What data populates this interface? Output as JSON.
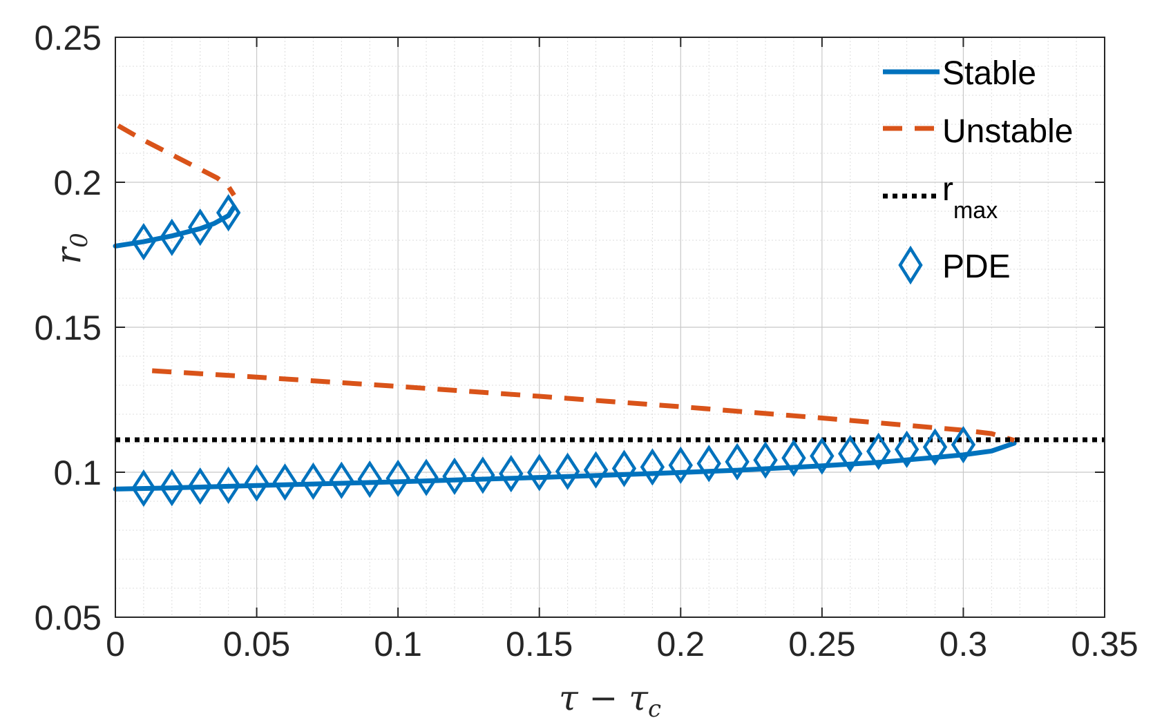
{
  "chart_data": {
    "type": "line",
    "xlabel": "τ − τc",
    "xlabel_main": "τ − τ",
    "xlabel_sub": "c",
    "ylabel": "r0",
    "ylabel_main": "r",
    "ylabel_sub": "0",
    "xlim": [
      0,
      0.35
    ],
    "ylim": [
      0.05,
      0.25
    ],
    "xticks": [
      "0",
      "0.05",
      "0.1",
      "0.15",
      "0.2",
      "0.25",
      "0.3",
      "0.35"
    ],
    "yticks": [
      "0.05",
      "0.1",
      "0.15",
      "0.2",
      "0.25"
    ],
    "grid": true,
    "minor_grid": true,
    "legend_position": "top-right",
    "colors": {
      "stable": "#0072BD",
      "unstable": "#D95319",
      "rmax": "#000000",
      "pde": "#0072BD"
    },
    "series": [
      {
        "name": "Stable",
        "style": "solid",
        "segments": [
          {
            "x": [
              0,
              0.01,
              0.02,
              0.03,
              0.035,
              0.04,
              0.042
            ],
            "y": [
              0.178,
              0.1795,
              0.1815,
              0.184,
              0.1858,
              0.1885,
              0.1915
            ]
          },
          {
            "x": [
              0,
              0.02,
              0.05,
              0.08,
              0.1,
              0.12,
              0.15,
              0.18,
              0.2,
              0.22,
              0.25,
              0.27,
              0.29,
              0.3,
              0.31,
              0.318
            ],
            "y": [
              0.0942,
              0.0946,
              0.0954,
              0.0962,
              0.0967,
              0.0973,
              0.0982,
              0.0992,
              0.0999,
              0.1007,
              0.1022,
              0.1034,
              0.1051,
              0.106,
              0.1073,
              0.11
            ]
          }
        ]
      },
      {
        "name": "Unstable",
        "style": "dashed",
        "segments": [
          {
            "x": [
              0.001,
              0.01,
              0.02,
              0.03,
              0.036,
              0.04,
              0.042
            ],
            "y": [
              0.2195,
              0.2145,
              0.2095,
              0.2045,
              0.2015,
              0.1985,
              0.1955
            ]
          },
          {
            "x": [
              0.013,
              0.05,
              0.1,
              0.15,
              0.2,
              0.25,
              0.28,
              0.3,
              0.31,
              0.318
            ],
            "y": [
              0.135,
              0.1328,
              0.1296,
              0.1262,
              0.1226,
              0.1187,
              0.1162,
              0.1145,
              0.1133,
              0.111
            ]
          }
        ]
      },
      {
        "name": "r",
        "name_sub": "max",
        "style": "dotted",
        "y_constant": 0.1112
      },
      {
        "name": "PDE",
        "style": "diamond-markers",
        "points": [
          [
            0.01,
            0.1795
          ],
          [
            0.02,
            0.181
          ],
          [
            0.03,
            0.1845
          ],
          [
            0.04,
            0.1895
          ],
          [
            0.01,
            0.0945
          ],
          [
            0.02,
            0.0947
          ],
          [
            0.03,
            0.0952
          ],
          [
            0.04,
            0.0955
          ],
          [
            0.05,
            0.0963
          ],
          [
            0.06,
            0.0966
          ],
          [
            0.07,
            0.0969
          ],
          [
            0.08,
            0.0972
          ],
          [
            0.09,
            0.0976
          ],
          [
            0.1,
            0.0979
          ],
          [
            0.11,
            0.0982
          ],
          [
            0.12,
            0.0986
          ],
          [
            0.13,
            0.099
          ],
          [
            0.14,
            0.0995
          ],
          [
            0.15,
            0.0999
          ],
          [
            0.16,
            0.1003
          ],
          [
            0.17,
            0.1008
          ],
          [
            0.18,
            0.1013
          ],
          [
            0.19,
            0.1018
          ],
          [
            0.2,
            0.1024
          ],
          [
            0.21,
            0.103
          ],
          [
            0.22,
            0.1036
          ],
          [
            0.23,
            0.1042
          ],
          [
            0.24,
            0.1049
          ],
          [
            0.25,
            0.1056
          ],
          [
            0.26,
            0.1064
          ],
          [
            0.27,
            0.1072
          ],
          [
            0.28,
            0.1079
          ],
          [
            0.29,
            0.1087
          ],
          [
            0.3,
            0.1095
          ]
        ]
      }
    ]
  }
}
